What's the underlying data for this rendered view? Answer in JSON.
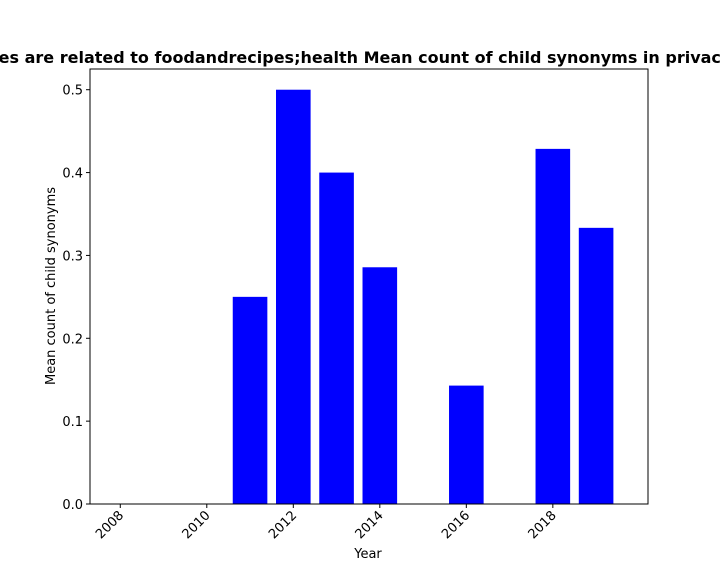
{
  "chart_data": {
    "type": "bar",
    "title": "es are related to foodandrecipes;health Mean count of child synonyms in privacy",
    "xlabel": "Year",
    "ylabel": "Mean count of child synonyms",
    "x": [
      2011,
      2012,
      2013,
      2014,
      2016,
      2018,
      2019
    ],
    "values": [
      0.25,
      0.5,
      0.4,
      0.2857,
      0.1429,
      0.4286,
      0.3333
    ],
    "xlim": [
      2007.3,
      2020.2
    ],
    "ylim": [
      0,
      0.525
    ],
    "xticks": [
      2008,
      2010,
      2012,
      2014,
      2016,
      2018
    ],
    "yticks": [
      0.0,
      0.1,
      0.2,
      0.3,
      0.4,
      0.5
    ],
    "bar_color": "#0000ff",
    "grid": false,
    "legend": "none"
  }
}
